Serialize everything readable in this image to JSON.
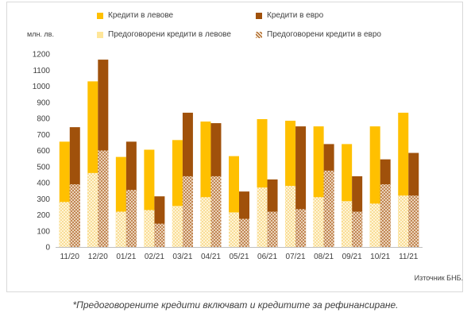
{
  "chart_data": {
    "type": "bar",
    "ylabel": "млн. лв.",
    "ylim": [
      0,
      1200
    ],
    "yticks": [
      0,
      100,
      200,
      300,
      400,
      500,
      600,
      700,
      800,
      900,
      1000,
      1100,
      1200
    ],
    "grid": false,
    "legend_position": "top",
    "categories": [
      "11/20",
      "12/20",
      "01/21",
      "02/21",
      "03/21",
      "04/21",
      "05/21",
      "06/21",
      "07/21",
      "08/21",
      "09/21",
      "10/21",
      "11/21"
    ],
    "series": [
      {
        "name": "Кредити в левове",
        "color": "#ffc000",
        "values": [
          655,
          1030,
          560,
          605,
          665,
          780,
          565,
          795,
          785,
          750,
          640,
          750,
          835
        ]
      },
      {
        "name": "Кредити в евро",
        "color": "#a0510b",
        "values": [
          745,
          1165,
          655,
          315,
          835,
          770,
          345,
          420,
          750,
          640,
          440,
          545,
          585
        ]
      },
      {
        "name": "Предоговорени кредити в левове",
        "color": "#ffe699",
        "values": [
          280,
          460,
          220,
          230,
          255,
          310,
          215,
          370,
          380,
          310,
          285,
          270,
          320
        ]
      },
      {
        "name": "Предоговорени кредити в евро",
        "color": "#c0a080",
        "values": [
          390,
          600,
          355,
          145,
          440,
          440,
          175,
          220,
          235,
          475,
          220,
          390,
          320
        ]
      }
    ]
  },
  "source": "Източник БНБ.",
  "footnote": "*Предоговорените кредити включват и кредитите за рефинансиране."
}
